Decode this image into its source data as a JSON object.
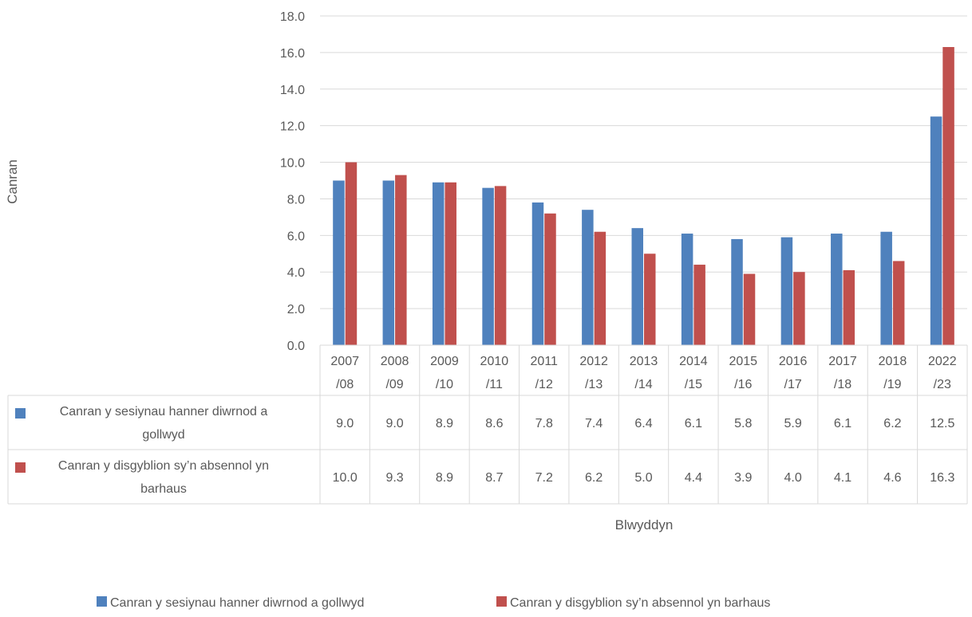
{
  "chart_data": {
    "type": "bar",
    "title": "",
    "ylabel": "Canran",
    "xlabel": "Blwyddyn",
    "ylim": [
      0,
      18
    ],
    "y_ticks": [
      "0.0",
      "2.0",
      "4.0",
      "6.0",
      "8.0",
      "10.0",
      "12.0",
      "14.0",
      "16.0",
      "18.0"
    ],
    "categories": [
      [
        "2007",
        "/08"
      ],
      [
        "2008",
        "/09"
      ],
      [
        "2009",
        "/10"
      ],
      [
        "2010",
        "/11"
      ],
      [
        "2011",
        "/12"
      ],
      [
        "2012",
        "/13"
      ],
      [
        "2013",
        "/14"
      ],
      [
        "2014",
        "/15"
      ],
      [
        "2015",
        "/16"
      ],
      [
        "2016",
        "/17"
      ],
      [
        "2017",
        "/18"
      ],
      [
        "2018",
        "/19"
      ],
      [
        "2022",
        "/23"
      ]
    ],
    "series": [
      {
        "name": "Canran y sesiynau hanner diwrnod a gollwyd",
        "table_label_lines": [
          "Canran y sesiynau hanner diwrnod a",
          "gollwyd"
        ],
        "color": "#4F81BD",
        "values": [
          9.0,
          9.0,
          8.9,
          8.6,
          7.8,
          7.4,
          6.4,
          6.1,
          5.8,
          5.9,
          6.1,
          6.2,
          12.5
        ],
        "labels": [
          "9.0",
          "9.0",
          "8.9",
          "8.6",
          "7.8",
          "7.4",
          "6.4",
          "6.1",
          "5.8",
          "5.9",
          "6.1",
          "6.2",
          "12.5"
        ]
      },
      {
        "name": "Canran y disgyblion sy’n absennol yn barhaus",
        "table_label_lines": [
          "Canran y disgyblion sy’n absennol yn",
          "barhaus"
        ],
        "color": "#C0504D",
        "values": [
          10.0,
          9.3,
          8.9,
          8.7,
          7.2,
          6.2,
          5.0,
          4.4,
          3.9,
          4.0,
          4.1,
          4.6,
          16.3
        ],
        "labels": [
          "10.0",
          "9.3",
          "8.9",
          "8.7",
          "7.2",
          "6.2",
          "5.0",
          "4.4",
          "3.9",
          "4.0",
          "4.1",
          "4.6",
          "16.3"
        ]
      }
    ],
    "grid": true,
    "legend_position": "bottom"
  }
}
